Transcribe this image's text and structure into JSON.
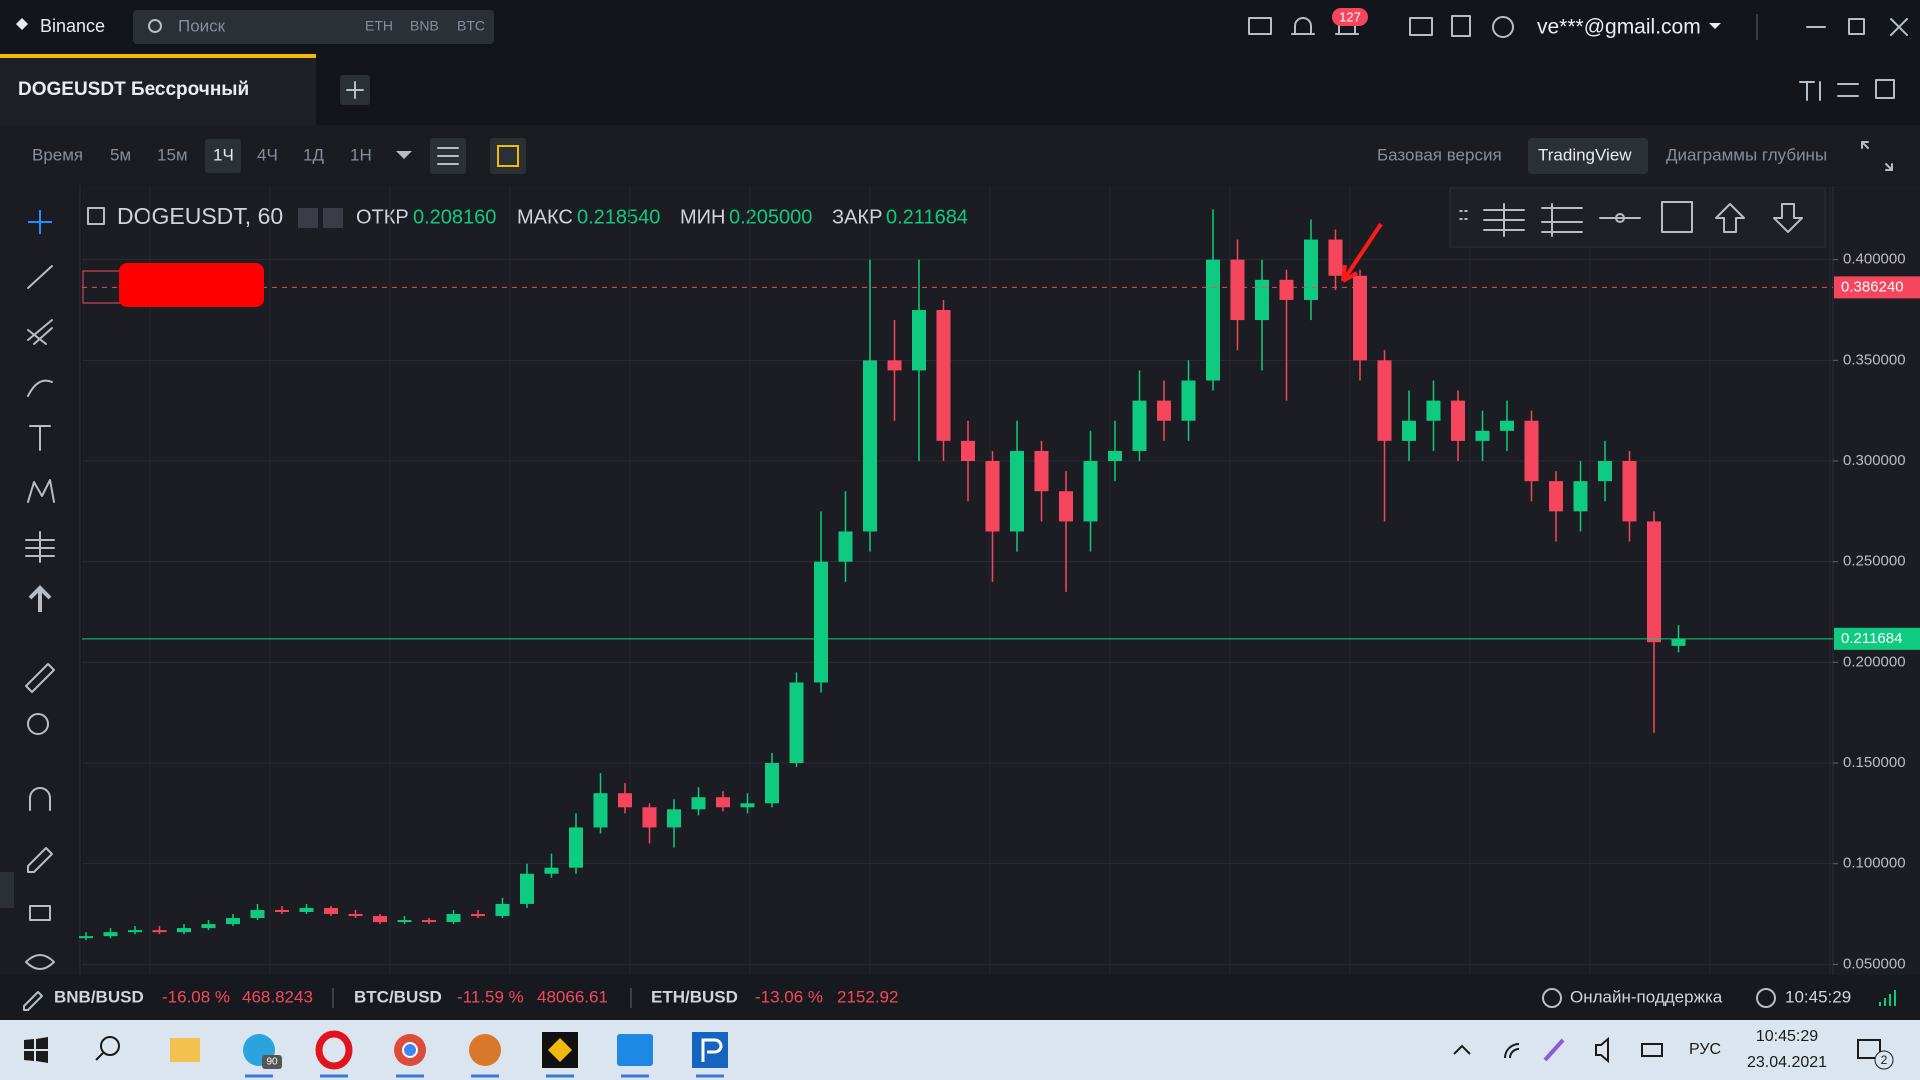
{
  "top_bar": {
    "brand": "Binance",
    "search_placeholder": "Поиск",
    "search_tags": [
      "ETH",
      "BNB",
      "BTC"
    ],
    "notifications": 127,
    "account": "ve***@gmail.com"
  },
  "tab": {
    "title": "DOGEUSDT Бессрочный"
  },
  "toolbar": {
    "time_label": "Время",
    "intervals": [
      "5м",
      "15м",
      "1Ч",
      "4Ч",
      "1Д",
      "1Н"
    ],
    "views": [
      "Базовая версия",
      "TradingView",
      "Диаграммы глубины"
    ]
  },
  "chart_data": {
    "type": "candlestick",
    "symbol": "DOGEUSDT, 60",
    "legend": {
      "open_label": "ОТКР",
      "open": "0.208160",
      "high_label": "МАКС",
      "high": "0.218540",
      "low_label": "МИН",
      "low": "0.205000",
      "close_label": "ЗАКР",
      "close": "0.211684"
    },
    "up_color": "#0ecb81",
    "down_color": "#f6465d",
    "grid": true,
    "ylim": [
      0.0457,
      0.4366
    ],
    "yticks": [
      {
        "value": 0.05,
        "label": "0.050000"
      },
      {
        "value": 0.1,
        "label": "0.100000"
      },
      {
        "value": 0.15,
        "label": "0.150000"
      },
      {
        "value": 0.2,
        "label": "0.200000"
      },
      {
        "value": 0.25,
        "label": "0.250000"
      },
      {
        "value": 0.3,
        "label": "0.300000"
      },
      {
        "value": 0.35,
        "label": "0.350000"
      },
      {
        "value": 0.4,
        "label": "0.400000"
      }
    ],
    "open": [
      0.063,
      0.064,
      0.066,
      0.067,
      0.066,
      0.068,
      0.07,
      0.073,
      0.077,
      0.076,
      0.078,
      0.075,
      0.074,
      0.071,
      0.072,
      0.071,
      0.075,
      0.074,
      0.08,
      0.095,
      0.098,
      0.118,
      0.135,
      0.128,
      0.118,
      0.127,
      0.133,
      0.128,
      0.13,
      0.15,
      0.19,
      0.25,
      0.265,
      0.35,
      0.345,
      0.375,
      0.31,
      0.3,
      0.265,
      0.305,
      0.285,
      0.27,
      0.3,
      0.305,
      0.33,
      0.32,
      0.34,
      0.4,
      0.37,
      0.39,
      0.38,
      0.41,
      0.392,
      0.35,
      0.31,
      0.32,
      0.33,
      0.31,
      0.315,
      0.32,
      0.29,
      0.275,
      0.29,
      0.3,
      0.27,
      0.20816
    ],
    "high": [
      0.066,
      0.068,
      0.069,
      0.069,
      0.07,
      0.072,
      0.075,
      0.08,
      0.079,
      0.08,
      0.079,
      0.077,
      0.075,
      0.074,
      0.073,
      0.077,
      0.077,
      0.083,
      0.1,
      0.105,
      0.125,
      0.145,
      0.14,
      0.13,
      0.132,
      0.138,
      0.136,
      0.135,
      0.155,
      0.195,
      0.275,
      0.285,
      0.4,
      0.37,
      0.4,
      0.38,
      0.32,
      0.305,
      0.32,
      0.31,
      0.295,
      0.315,
      0.32,
      0.345,
      0.34,
      0.35,
      0.425,
      0.41,
      0.4,
      0.395,
      0.42,
      0.415,
      0.395,
      0.355,
      0.335,
      0.34,
      0.335,
      0.325,
      0.33,
      0.325,
      0.295,
      0.3,
      0.31,
      0.305,
      0.275,
      0.21854
    ],
    "low": [
      0.062,
      0.063,
      0.065,
      0.065,
      0.065,
      0.067,
      0.069,
      0.072,
      0.075,
      0.075,
      0.074,
      0.073,
      0.07,
      0.07,
      0.07,
      0.07,
      0.073,
      0.073,
      0.078,
      0.093,
      0.095,
      0.115,
      0.125,
      0.11,
      0.108,
      0.124,
      0.126,
      0.125,
      0.128,
      0.148,
      0.185,
      0.24,
      0.255,
      0.32,
      0.3,
      0.3,
      0.28,
      0.24,
      0.255,
      0.27,
      0.235,
      0.255,
      0.29,
      0.3,
      0.31,
      0.31,
      0.335,
      0.355,
      0.345,
      0.33,
      0.37,
      0.385,
      0.34,
      0.27,
      0.3,
      0.305,
      0.3,
      0.3,
      0.305,
      0.28,
      0.26,
      0.265,
      0.28,
      0.26,
      0.165,
      0.205
    ],
    "close": [
      0.064,
      0.066,
      0.067,
      0.066,
      0.068,
      0.07,
      0.073,
      0.077,
      0.076,
      0.078,
      0.075,
      0.074,
      0.071,
      0.072,
      0.071,
      0.075,
      0.074,
      0.08,
      0.095,
      0.098,
      0.118,
      0.135,
      0.128,
      0.118,
      0.127,
      0.133,
      0.128,
      0.13,
      0.15,
      0.19,
      0.25,
      0.265,
      0.35,
      0.345,
      0.375,
      0.31,
      0.3,
      0.265,
      0.305,
      0.285,
      0.27,
      0.3,
      0.305,
      0.33,
      0.32,
      0.34,
      0.4,
      0.37,
      0.39,
      0.38,
      0.41,
      0.392,
      0.35,
      0.31,
      0.32,
      0.33,
      0.31,
      0.315,
      0.32,
      0.29,
      0.275,
      0.29,
      0.3,
      0.27,
      0.21,
      0.211684
    ],
    "price_lines": [
      {
        "value": 0.38624,
        "label": "0.386240",
        "color": "#f6465d",
        "dashed": true
      },
      {
        "value": 0.211684,
        "label": "0.211684",
        "color": "#0ecb81",
        "dashed": false
      }
    ]
  },
  "ticker_bar": {
    "items": [
      {
        "pair": "BNB/BUSD",
        "change": "-16.08 %",
        "price": "468.8243"
      },
      {
        "pair": "BTC/BUSD",
        "change": "-11.59 %",
        "price": "48066.61"
      },
      {
        "pair": "ETH/BUSD",
        "change": "-13.06 %",
        "price": "2152.92"
      }
    ],
    "support": "Онлайн-поддержка",
    "time": "10:45:29"
  },
  "taskbar": {
    "telegram_badge": 90,
    "language": "РУС",
    "time": "10:45:29",
    "date": "23.04.2021",
    "notifications": 2
  }
}
